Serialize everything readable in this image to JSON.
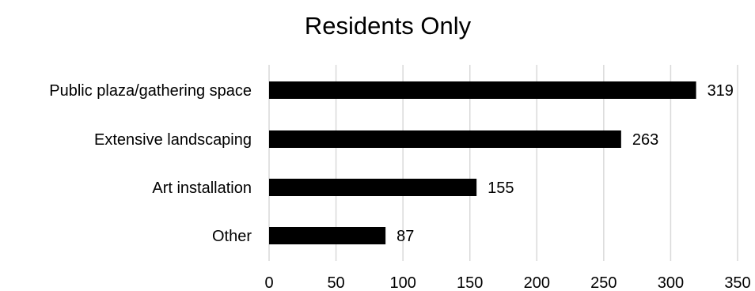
{
  "chart_data": {
    "type": "bar",
    "orientation": "horizontal",
    "title": "Residents Only",
    "xlabel": "",
    "ylabel": "",
    "categories": [
      "Public plaza/gathering space",
      "Extensive landscaping",
      "Art installation",
      "Other"
    ],
    "values": [
      319,
      263,
      155,
      87
    ],
    "data_labels": [
      "319",
      "263",
      "155",
      "87"
    ],
    "xlim": [
      0,
      350
    ],
    "x_ticks": [
      0,
      50,
      100,
      150,
      200,
      250,
      300,
      350
    ],
    "x_tick_labels": [
      "0",
      "50",
      "100",
      "150",
      "200",
      "250",
      "300",
      "350"
    ],
    "grid": "vertical",
    "legend": "none",
    "bar_color": "#000000",
    "grid_color": "#d9d9d9"
  }
}
